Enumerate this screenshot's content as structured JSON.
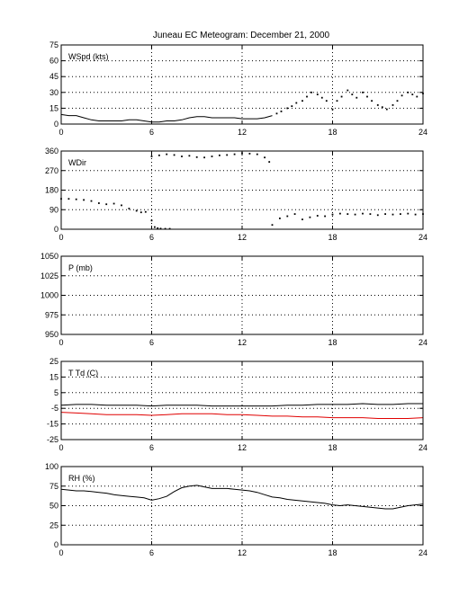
{
  "figure_title": "Juneau EC Meteogram:   December 21, 2000",
  "chart_data": [
    {
      "type": "line",
      "ylabel": "WSpd (kts)",
      "xlim": [
        0,
        24
      ],
      "xticks": [
        0,
        6,
        12,
        18,
        24
      ],
      "ylim": [
        0,
        75
      ],
      "yticks": [
        0,
        15,
        30,
        45,
        60,
        75
      ],
      "grid": true,
      "series": [
        {
          "style": "solid",
          "color": "#000000",
          "x": [
            0,
            0.5,
            1,
            1.5,
            2,
            2.5,
            3,
            3.5,
            4,
            4.5,
            5,
            5.5,
            6,
            6.5,
            7,
            7.5,
            8,
            8.5,
            9,
            9.5,
            10,
            10.5,
            11,
            11.5,
            12,
            12.5,
            13,
            13.5,
            14
          ],
          "y": [
            9,
            8,
            8,
            6,
            4,
            3,
            3,
            3,
            3,
            4,
            4,
            3,
            2,
            2,
            3,
            3,
            4,
            6,
            7,
            7,
            6,
            6,
            6,
            6,
            5,
            5,
            5,
            6,
            8
          ]
        },
        {
          "style": "dots",
          "color": "#000000",
          "x": [
            14.3,
            14.6,
            15,
            15.3,
            15.6,
            16,
            16.3,
            16.6,
            17,
            17.3,
            17.6,
            18,
            18.3,
            18.6,
            19,
            19.3,
            19.6,
            20,
            20.3,
            20.6,
            21,
            21.3,
            21.6,
            22,
            22.3,
            22.6,
            23,
            23.3,
            23.6,
            24
          ],
          "y": [
            10,
            12,
            15,
            17,
            20,
            22,
            26,
            30,
            28,
            25,
            22,
            14,
            22,
            26,
            32,
            28,
            25,
            30,
            26,
            22,
            18,
            16,
            14,
            18,
            22,
            27,
            30,
            28,
            26,
            29
          ]
        }
      ]
    },
    {
      "type": "scatter",
      "ylabel": "WDir",
      "xlim": [
        0,
        24
      ],
      "xticks": [
        0,
        6,
        12,
        18,
        24
      ],
      "ylim": [
        0,
        360
      ],
      "yticks": [
        0,
        90,
        180,
        270,
        360
      ],
      "grid": true,
      "series": [
        {
          "style": "dots",
          "color": "#000000",
          "x": [
            0,
            0.5,
            1,
            1.5,
            2,
            2.5,
            3,
            3.5,
            4,
            4.5,
            5,
            5.3,
            5.6,
            6,
            6.2,
            6.4,
            6.6,
            6.9,
            7.2,
            14,
            14.5,
            15,
            15.5,
            16,
            16.5,
            17,
            17.5,
            18,
            18.5,
            19,
            19.5,
            20,
            20.5,
            21,
            21.5,
            22,
            22.5,
            23,
            23.5,
            24
          ],
          "y": [
            140,
            140,
            138,
            135,
            130,
            120,
            115,
            118,
            110,
            95,
            85,
            78,
            80,
            40,
            10,
            5,
            3,
            2,
            2,
            20,
            50,
            60,
            70,
            45,
            55,
            62,
            60,
            68,
            72,
            70,
            68,
            72,
            70,
            65,
            70,
            68,
            70,
            72,
            68,
            70
          ]
        },
        {
          "style": "dots",
          "color": "#000000",
          "x": [
            6,
            6.5,
            7,
            7.5,
            8,
            8.5,
            9,
            9.5,
            10,
            10.5,
            11,
            11.5,
            12,
            12.5,
            13,
            13.5,
            13.8
          ],
          "y": [
            335,
            340,
            345,
            342,
            335,
            338,
            332,
            330,
            335,
            340,
            342,
            345,
            350,
            348,
            345,
            330,
            310
          ]
        }
      ]
    },
    {
      "type": "line",
      "ylabel": "P (mb)",
      "xlim": [
        0,
        24
      ],
      "xticks": [
        0,
        6,
        12,
        18,
        24
      ],
      "ylim": [
        950,
        1050
      ],
      "yticks": [
        950,
        975,
        1000,
        1025,
        1050
      ],
      "grid": true,
      "series": []
    },
    {
      "type": "line",
      "ylabel": "T Td (C)",
      "xlim": [
        0,
        24
      ],
      "xticks": [
        0,
        6,
        12,
        18,
        24
      ],
      "ylim": [
        -25,
        25
      ],
      "yticks": [
        -25,
        -15,
        -5,
        5,
        15,
        25
      ],
      "grid": true,
      "series": [
        {
          "style": "solid",
          "color": "#000000",
          "x": [
            0,
            1,
            2,
            3,
            4,
            5,
            6,
            7,
            8,
            9,
            10,
            11,
            12,
            13,
            14,
            15,
            16,
            17,
            18,
            19,
            20,
            21,
            22,
            23,
            24
          ],
          "y": [
            -3,
            -2.5,
            -2.5,
            -3,
            -3,
            -3,
            -3.5,
            -3,
            -3,
            -3,
            -3.5,
            -3.5,
            -3.5,
            -3.5,
            -3.5,
            -3,
            -3,
            -2.5,
            -2.5,
            -2.5,
            -2,
            -2.5,
            -2.5,
            -2,
            -2
          ]
        },
        {
          "style": "solid",
          "color": "#e00000",
          "x": [
            0,
            1,
            2,
            3,
            4,
            5,
            6,
            7,
            8,
            9,
            10,
            11,
            12,
            13,
            14,
            15,
            16,
            17,
            18,
            19,
            20,
            21,
            22,
            23,
            24
          ],
          "y": [
            -7.5,
            -8,
            -8.5,
            -9,
            -9,
            -9,
            -9.5,
            -9,
            -8.5,
            -8.5,
            -8.5,
            -9,
            -9,
            -9.5,
            -10,
            -10,
            -10.5,
            -10.5,
            -11,
            -11,
            -11,
            -11.5,
            -11.5,
            -11.5,
            -11
          ]
        }
      ]
    },
    {
      "type": "line",
      "ylabel": "RH (%)",
      "xlim": [
        0,
        24
      ],
      "xticks": [
        0,
        6,
        12,
        18,
        24
      ],
      "ylim": [
        0,
        100
      ],
      "yticks": [
        0,
        25,
        50,
        75,
        100
      ],
      "grid": true,
      "series": [
        {
          "style": "solid",
          "color": "#000000",
          "x": [
            0,
            0.5,
            1,
            1.5,
            2,
            2.5,
            3,
            3.5,
            4,
            4.5,
            5,
            5.5,
            6,
            6.5,
            7,
            7.5,
            8,
            8.5,
            9,
            9.5,
            10,
            10.5,
            11,
            11.5,
            12,
            12.5,
            13,
            13.5,
            14,
            14.5,
            15,
            15.5,
            16,
            16.5,
            17,
            17.5,
            18,
            18.5,
            19,
            19.5,
            20,
            20.5,
            21,
            21.5,
            22,
            22.5,
            23,
            23.5,
            24
          ],
          "y": [
            71,
            70,
            69,
            69,
            68,
            67,
            66,
            64,
            63,
            62,
            61,
            60,
            57,
            59,
            62,
            68,
            73,
            75,
            76,
            74,
            72,
            72,
            72,
            71,
            70,
            69,
            67,
            64,
            61,
            60,
            58,
            57,
            56,
            55,
            54,
            53,
            51,
            50,
            51,
            50,
            49,
            48,
            47,
            46,
            46,
            48,
            50,
            51,
            52
          ]
        }
      ]
    }
  ]
}
